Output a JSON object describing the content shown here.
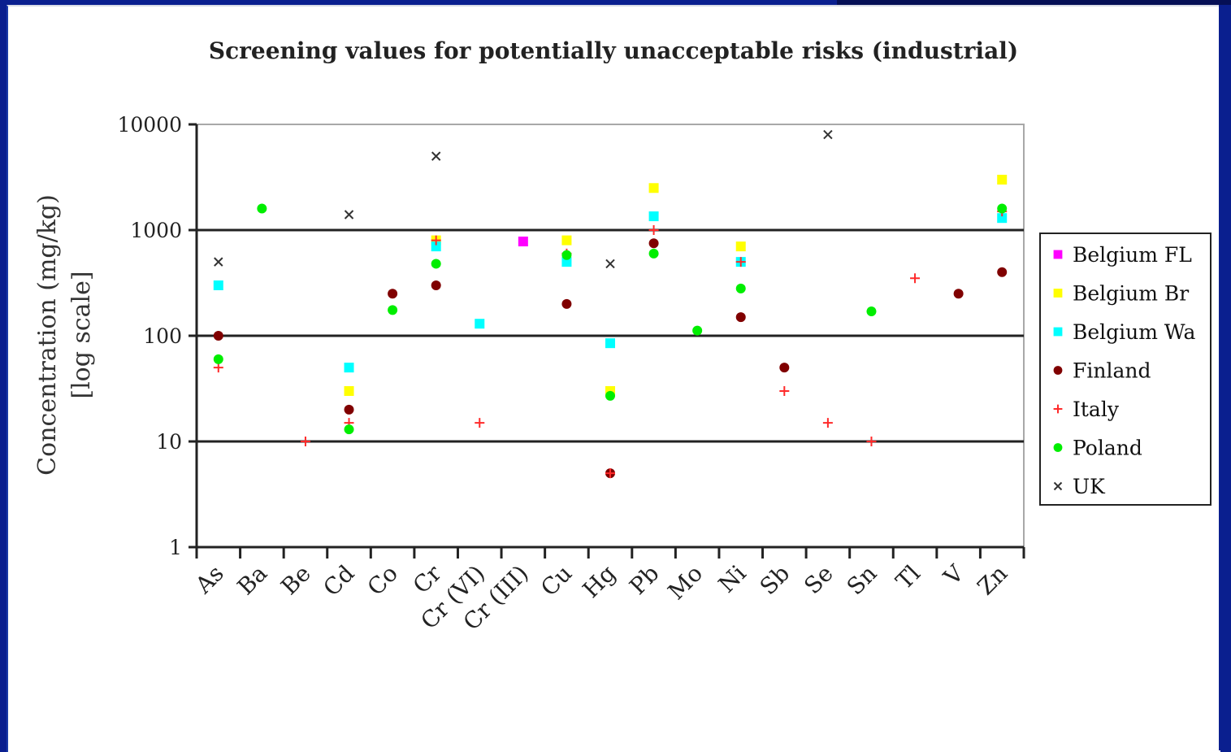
{
  "chart_data": {
    "type": "scatter",
    "title": "Screening values for  potentially unacceptable risks (industrial)",
    "ylabel_line1": "Concentration (mg/kg)",
    "ylabel_line2": "[log scale]",
    "yscale": "log",
    "ylim": [
      1,
      10000
    ],
    "yticks": [
      "1",
      "10",
      "100",
      "1000",
      "10000"
    ],
    "grid_major_y": true,
    "legend_position": "right",
    "categories": [
      "As",
      "Ba",
      "Be",
      "Cd",
      "Co",
      "Cr",
      "Cr (VI)",
      "Cr (III)",
      "Cu",
      "Hg",
      "Pb",
      "Mo",
      "Ni",
      "Sb",
      "Se",
      "Sn",
      "Tl",
      "V",
      "Zn"
    ],
    "series": [
      {
        "name": "Belgium FL",
        "color": "#ff00ff",
        "marker": "square",
        "points": [
          {
            "cat": "Cr (III)",
            "y": 780
          }
        ]
      },
      {
        "name": "Belgium Br",
        "color": "#ffff00",
        "marker": "square",
        "points": [
          {
            "cat": "Cd",
            "y": 30
          },
          {
            "cat": "Cr",
            "y": 800
          },
          {
            "cat": "Cu",
            "y": 800
          },
          {
            "cat": "Hg",
            "y": 30
          },
          {
            "cat": "Pb",
            "y": 2500
          },
          {
            "cat": "Ni",
            "y": 700
          },
          {
            "cat": "Zn",
            "y": 3000
          }
        ]
      },
      {
        "name": "Belgium Wa",
        "color": "#00ffff",
        "marker": "square",
        "points": [
          {
            "cat": "As",
            "y": 300
          },
          {
            "cat": "Cd",
            "y": 50
          },
          {
            "cat": "Cr",
            "y": 700
          },
          {
            "cat": "Cr (VI)",
            "y": 130
          },
          {
            "cat": "Cu",
            "y": 500
          },
          {
            "cat": "Hg",
            "y": 85
          },
          {
            "cat": "Pb",
            "y": 1350
          },
          {
            "cat": "Ni",
            "y": 500
          },
          {
            "cat": "Zn",
            "y": 1300
          }
        ]
      },
      {
        "name": "Finland",
        "color": "#800000",
        "marker": "circle",
        "points": [
          {
            "cat": "As",
            "y": 100
          },
          {
            "cat": "Cd",
            "y": 20
          },
          {
            "cat": "Co",
            "y": 250
          },
          {
            "cat": "Cr",
            "y": 300
          },
          {
            "cat": "Cu",
            "y": 200
          },
          {
            "cat": "Hg",
            "y": 5
          },
          {
            "cat": "Pb",
            "y": 750
          },
          {
            "cat": "Ni",
            "y": 150
          },
          {
            "cat": "Sb",
            "y": 50
          },
          {
            "cat": "V",
            "y": 250
          },
          {
            "cat": "Zn",
            "y": 400
          }
        ]
      },
      {
        "name": "Italy",
        "color": "#ff2a2a",
        "marker": "plus",
        "points": [
          {
            "cat": "As",
            "y": 50
          },
          {
            "cat": "Be",
            "y": 10
          },
          {
            "cat": "Cd",
            "y": 15
          },
          {
            "cat": "Cr",
            "y": 800
          },
          {
            "cat": "Cr (VI)",
            "y": 15
          },
          {
            "cat": "Cu",
            "y": 600
          },
          {
            "cat": "Hg",
            "y": 5
          },
          {
            "cat": "Pb",
            "y": 1000
          },
          {
            "cat": "Ni",
            "y": 500
          },
          {
            "cat": "Sb",
            "y": 30
          },
          {
            "cat": "Se",
            "y": 15
          },
          {
            "cat": "Sn",
            "y": 10
          },
          {
            "cat": "Tl",
            "y": 350
          },
          {
            "cat": "Zn",
            "y": 1500
          }
        ]
      },
      {
        "name": "Poland",
        "color": "#00ee00",
        "marker": "circle",
        "points": [
          {
            "cat": "As",
            "y": 60
          },
          {
            "cat": "Ba",
            "y": 1600
          },
          {
            "cat": "Cd",
            "y": 13
          },
          {
            "cat": "Co",
            "y": 175
          },
          {
            "cat": "Cr",
            "y": 480
          },
          {
            "cat": "Cu",
            "y": 580
          },
          {
            "cat": "Hg",
            "y": 27
          },
          {
            "cat": "Pb",
            "y": 600
          },
          {
            "cat": "Mo",
            "y": 112
          },
          {
            "cat": "Ni",
            "y": 280
          },
          {
            "cat": "Sn",
            "y": 170
          },
          {
            "cat": "Zn",
            "y": 1600
          }
        ]
      },
      {
        "name": "UK",
        "color": "#333333",
        "marker": "x",
        "points": [
          {
            "cat": "As",
            "y": 500
          },
          {
            "cat": "Cd",
            "y": 1400
          },
          {
            "cat": "Cr",
            "y": 5000
          },
          {
            "cat": "Hg",
            "y": 480
          },
          {
            "cat": "Se",
            "y": 8000
          }
        ]
      }
    ]
  }
}
